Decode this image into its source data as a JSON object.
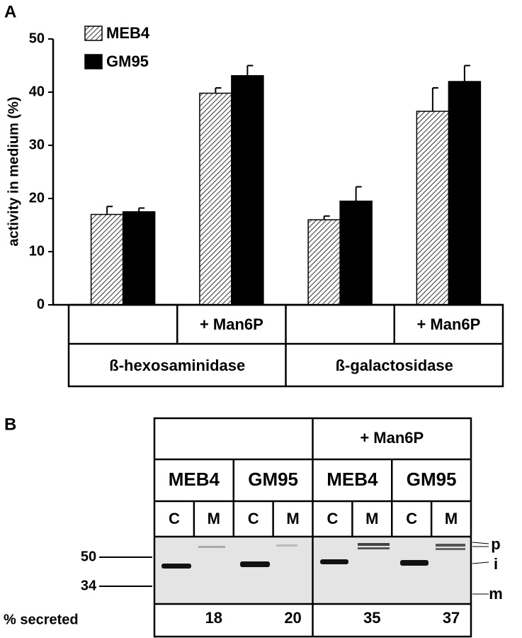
{
  "chart_data": {
    "type": "bar",
    "panel": "A",
    "ylabel": "activity in medium (%)",
    "ylim": [
      0,
      50
    ],
    "yticks": [
      0,
      10,
      20,
      30,
      40,
      50
    ],
    "categories": [
      null,
      "+ Man6P",
      null,
      "+ Man6P"
    ],
    "groups": [
      "ß-hexosaminidase",
      "ß-galactosidase"
    ],
    "series": [
      {
        "name": "MEB4",
        "color": "#000000",
        "pattern": "hatch",
        "values": [
          17,
          39.8,
          16,
          36.4
        ],
        "errors": [
          1.5,
          1,
          0.7,
          4.4
        ]
      },
      {
        "name": "GM95",
        "color": "#000000",
        "pattern": "solid",
        "values": [
          17.5,
          43.1,
          19.5,
          42
        ],
        "errors": [
          0.7,
          1.9,
          2.7,
          3
        ]
      }
    ]
  },
  "gel": {
    "panel": "B",
    "treatments": [
      "",
      "+ Man6P"
    ],
    "cell_lines": [
      "MEB4",
      "GM95",
      "MEB4",
      "GM95"
    ],
    "fractions": [
      "C",
      "M",
      "C",
      "M",
      "C",
      "M",
      "C",
      "M"
    ],
    "markers": [
      50,
      34
    ],
    "band_labels": [
      "p",
      "i",
      "m"
    ],
    "row_label": "% secreted",
    "percent_secreted": [
      18,
      20,
      35,
      37
    ]
  }
}
